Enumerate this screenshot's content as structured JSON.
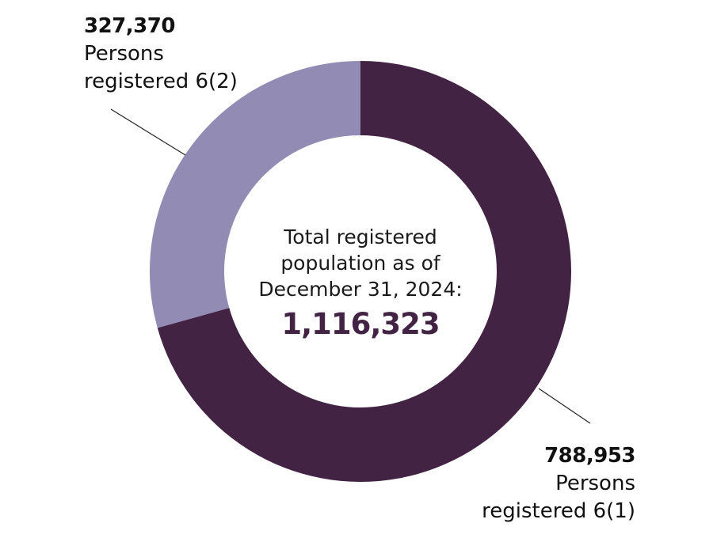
{
  "chart_data": {
    "type": "pie",
    "subtype": "donut",
    "title": "",
    "center_label": "Total registered population as of December 31, 2024:",
    "center_value": "1,116,323",
    "total": 1116323,
    "categories": [
      "Persons registered 6(1)",
      "Persons registered 6(2)"
    ],
    "values": [
      788953,
      327370
    ],
    "value_labels": [
      "788,953",
      "327,370"
    ],
    "colors": [
      "#432343",
      "#928cb4"
    ],
    "start_angle_deg": 0,
    "direction": "clockwise",
    "legend": "none (direct labels with leader lines)"
  },
  "labels": {
    "seg_6_2": {
      "value": "327,370",
      "line1": "Persons",
      "line2": "registered 6(2)"
    },
    "seg_6_1": {
      "value": "788,953",
      "line1": "Persons",
      "line2": "registered 6(1)"
    }
  },
  "center": {
    "line1": "Total registered",
    "line2": "population as of",
    "line3": "December 31, 2024:",
    "total": "1,116,323"
  }
}
